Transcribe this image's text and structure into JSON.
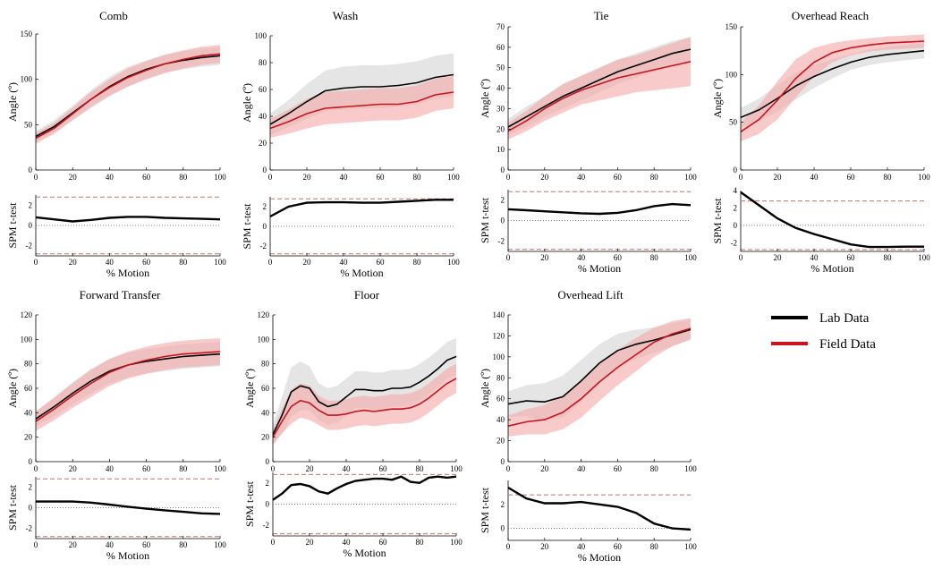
{
  "chart_data": {
    "type": "line",
    "legend": {
      "position": "right",
      "entries": [
        {
          "name": "Lab Data",
          "color": "#000000"
        },
        {
          "name": "Field Data",
          "color": "#c8141e"
        }
      ]
    },
    "colors": {
      "lab": "#000000",
      "field": "#c8141e",
      "lab_band": "#dcdcdc",
      "field_band": "#f3a7a7",
      "threshold": "#c07070"
    },
    "panels": [
      {
        "title": "Comb",
        "x": [
          0,
          10,
          20,
          30,
          40,
          50,
          60,
          70,
          80,
          90,
          100
        ],
        "xlim": [
          0,
          100
        ],
        "xticks": [
          0,
          20,
          40,
          60,
          80,
          100
        ],
        "ylabel": "Angle (º)",
        "ylim": [
          0,
          150
        ],
        "yticks": [
          0,
          50,
          100,
          150
        ],
        "series": [
          {
            "name": "Lab Data",
            "values": [
              37,
              48,
              63,
              78,
              92,
              103,
              111,
              117,
              121,
              124,
              126
            ],
            "sd": [
              6,
              7,
              8,
              10,
              11,
              11,
              10,
              10,
              10,
              10,
              10
            ]
          },
          {
            "name": "Field Data",
            "values": [
              35,
              46,
              62,
              78,
              91,
              102,
              110,
              117,
              122,
              126,
              128
            ],
            "sd": [
              6,
              6,
              7,
              8,
              9,
              10,
              10,
              10,
              10,
              10,
              10
            ]
          }
        ],
        "spm": {
          "ylabel": "SPM t-test",
          "xlabel": "% Motion",
          "ylim": [
            -3,
            3
          ],
          "yticks": [
            -2,
            0,
            2
          ],
          "threshold": 2.8,
          "t": [
            0.8,
            0.6,
            0.4,
            0.55,
            0.75,
            0.85,
            0.85,
            0.75,
            0.7,
            0.65,
            0.6
          ]
        }
      },
      {
        "title": "Wash",
        "x": [
          0,
          10,
          20,
          30,
          40,
          50,
          60,
          70,
          80,
          90,
          100
        ],
        "xlim": [
          0,
          100
        ],
        "xticks": [
          0,
          20,
          40,
          60,
          80,
          100
        ],
        "ylabel": "Angle (º)",
        "ylim": [
          0,
          100
        ],
        "yticks": [
          0,
          20,
          40,
          60,
          80,
          100
        ],
        "series": [
          {
            "name": "Lab Data",
            "values": [
              34,
              42,
              51,
              59,
              61,
              62,
              62,
              63,
              65,
              69,
              71
            ],
            "sd": [
              8,
              10,
              13,
              15,
              16,
              16,
              16,
              16,
              16,
              16,
              16
            ]
          },
          {
            "name": "Field Data",
            "values": [
              31,
              36,
              42,
              46,
              47,
              48,
              49,
              49,
              51,
              56,
              58
            ],
            "sd": [
              7,
              9,
              11,
              12,
              12,
              12,
              12,
              12,
              12,
              12,
              12
            ]
          }
        ],
        "spm": {
          "ylabel": "SPM t-test",
          "xlabel": "% Motion",
          "ylim": [
            -3,
            3
          ],
          "yticks": [
            -2,
            0,
            2
          ],
          "threshold": 2.8,
          "t": [
            1.0,
            2.0,
            2.4,
            2.45,
            2.45,
            2.4,
            2.4,
            2.5,
            2.6,
            2.7,
            2.7
          ]
        }
      },
      {
        "title": "Tie",
        "x": [
          0,
          10,
          20,
          30,
          40,
          50,
          60,
          70,
          80,
          90,
          100
        ],
        "xlim": [
          0,
          100
        ],
        "xticks": [
          0,
          20,
          40,
          60,
          80,
          100
        ],
        "ylabel": "Angle (º)",
        "ylim": [
          0,
          70
        ],
        "yticks": [
          0,
          10,
          20,
          30,
          40,
          50,
          60,
          70
        ],
        "series": [
          {
            "name": "Lab Data",
            "values": [
              21,
              26,
              31,
              36,
              40,
              44,
              48,
              51,
              54,
              57,
              59
            ],
            "sd": [
              4,
              5,
              5,
              6,
              6,
              6,
              6,
              6,
              6,
              6,
              6
            ]
          },
          {
            "name": "Field Data",
            "values": [
              19,
              24,
              30,
              35,
              39,
              42,
              45,
              47,
              49,
              51,
              53
            ],
            "sd": [
              4,
              5,
              6,
              7,
              7,
              8,
              9,
              9,
              10,
              11,
              12
            ]
          }
        ],
        "spm": {
          "ylabel": "SPM t-test",
          "xlabel": "% Motion",
          "ylim": [
            -3,
            3
          ],
          "yticks": [
            -2,
            0,
            2
          ],
          "threshold": 2.8,
          "t": [
            1.1,
            1.0,
            0.9,
            0.8,
            0.7,
            0.65,
            0.75,
            1.0,
            1.4,
            1.6,
            1.5
          ]
        }
      },
      {
        "title": "Overhead Reach",
        "x": [
          0,
          10,
          20,
          30,
          40,
          50,
          60,
          70,
          80,
          90,
          100
        ],
        "xlim": [
          0,
          100
        ],
        "xticks": [
          0,
          20,
          40,
          60,
          80,
          100
        ],
        "ylabel": "Angle (º)",
        "ylim": [
          0,
          150
        ],
        "yticks": [
          0,
          50,
          100,
          150
        ],
        "series": [
          {
            "name": "Lab Data",
            "values": [
              55,
              63,
              75,
              88,
              98,
              106,
              113,
              118,
              121,
              123,
              125
            ],
            "sd": [
              10,
              12,
              14,
              14,
              12,
              10,
              8,
              8,
              8,
              8,
              8
            ]
          },
          {
            "name": "Field Data",
            "values": [
              40,
              53,
              73,
              96,
              113,
              123,
              128,
              131,
              133,
              134,
              135
            ],
            "sd": [
              10,
              15,
              20,
              20,
              15,
              10,
              8,
              7,
              7,
              7,
              7
            ]
          }
        ],
        "spm": {
          "ylabel": "SPM t-test",
          "xlabel": "% Motion",
          "ylim": [
            -3,
            4
          ],
          "yticks": [
            -2,
            0,
            2,
            4
          ],
          "threshold": 2.8,
          "t": [
            3.8,
            2.3,
            0.8,
            -0.3,
            -1.0,
            -1.6,
            -2.2,
            -2.5,
            -2.5,
            -2.45,
            -2.45
          ]
        }
      },
      {
        "title": "Forward Transfer",
        "x": [
          0,
          10,
          20,
          30,
          40,
          50,
          60,
          70,
          80,
          90,
          100
        ],
        "xlim": [
          0,
          100
        ],
        "xticks": [
          0,
          20,
          40,
          60,
          80,
          100
        ],
        "ylabel": "Angle (º)",
        "ylim": [
          0,
          120
        ],
        "yticks": [
          0,
          20,
          40,
          60,
          80,
          100,
          120
        ],
        "series": [
          {
            "name": "Lab Data",
            "values": [
              35,
              45,
              56,
              66,
              74,
              79,
              82,
              84,
              86,
              87,
              88
            ],
            "sd": [
              6,
              8,
              9,
              10,
              10,
              10,
              10,
              10,
              10,
              10,
              10
            ]
          },
          {
            "name": "Field Data",
            "values": [
              33,
              43,
              54,
              64,
              73,
              79,
              83,
              86,
              88,
              89,
              90
            ],
            "sd": [
              8,
              9,
              10,
              11,
              11,
              11,
              11,
              11,
              11,
              11,
              11
            ]
          }
        ],
        "spm": {
          "ylabel": "SPM t-test",
          "xlabel": "% Motion",
          "ylim": [
            -3,
            3
          ],
          "yticks": [
            -2,
            0,
            2
          ],
          "threshold": 2.8,
          "t": [
            0.6,
            0.6,
            0.6,
            0.5,
            0.3,
            0.1,
            -0.1,
            -0.25,
            -0.4,
            -0.55,
            -0.6
          ]
        }
      },
      {
        "title": "Floor",
        "x": [
          0,
          5,
          10,
          15,
          20,
          25,
          30,
          35,
          40,
          45,
          50,
          55,
          60,
          65,
          70,
          75,
          80,
          85,
          90,
          95,
          100
        ],
        "xlim": [
          0,
          100
        ],
        "xticks": [
          0,
          20,
          40,
          60,
          80,
          100
        ],
        "ylabel": "Angle (º)",
        "ylim": [
          0,
          120
        ],
        "yticks": [
          0,
          20,
          40,
          60,
          80,
          100,
          120
        ],
        "series": [
          {
            "name": "Lab Data",
            "values": [
              22,
              38,
              57,
              62,
              60,
              49,
              45,
              47,
              53,
              59,
              59,
              58,
              58,
              60,
              60,
              61,
              65,
              70,
              76,
              83,
              86
            ],
            "sd": [
              8,
              15,
              20,
              20,
              18,
              15,
              15,
              15,
              15,
              15,
              15,
              15,
              15,
              15,
              15,
              15,
              15,
              15,
              15,
              15,
              15
            ]
          },
          {
            "name": "Field Data",
            "values": [
              20,
              33,
              45,
              50,
              48,
              42,
              38,
              38,
              39,
              41,
              42,
              41,
              42,
              43,
              43,
              44,
              47,
              52,
              58,
              64,
              68
            ],
            "sd": [
              6,
              10,
              14,
              14,
              14,
              12,
              12,
              12,
              12,
              12,
              12,
              12,
              12,
              12,
              12,
              12,
              12,
              12,
              12,
              12,
              12
            ]
          }
        ],
        "spm": {
          "ylabel": "SPM t-test",
          "xlabel": "% Motion",
          "ylim": [
            -3,
            3
          ],
          "yticks": [
            -2,
            0,
            2
          ],
          "threshold": 2.8,
          "t": [
            0.4,
            1.0,
            1.8,
            1.9,
            1.7,
            1.2,
            1.0,
            1.5,
            1.9,
            2.2,
            2.3,
            2.4,
            2.4,
            2.3,
            2.6,
            2.1,
            2.0,
            2.5,
            2.6,
            2.5,
            2.6
          ]
        }
      },
      {
        "title": "Overhead Lift",
        "x": [
          0,
          10,
          20,
          30,
          40,
          50,
          60,
          70,
          80,
          90,
          100
        ],
        "xlim": [
          0,
          100
        ],
        "xticks": [
          0,
          20,
          40,
          60,
          80,
          100
        ],
        "ylabel": "Angle (º)",
        "ylim": [
          0,
          140
        ],
        "yticks": [
          0,
          20,
          40,
          60,
          80,
          100,
          120,
          140
        ],
        "series": [
          {
            "name": "Lab Data",
            "values": [
              55,
              58,
              57,
              62,
              77,
              94,
              106,
              112,
              116,
              121,
              126
            ],
            "sd": [
              12,
              15,
              18,
              20,
              20,
              18,
              16,
              14,
              12,
              11,
              10
            ]
          },
          {
            "name": "Field Data",
            "values": [
              34,
              38,
              40,
              47,
              60,
              76,
              90,
              102,
              114,
              122,
              127
            ],
            "sd": [
              10,
              12,
              14,
              16,
              18,
              18,
              17,
              16,
              14,
              12,
              10
            ]
          }
        ],
        "spm": {
          "ylabel": "SPM t-test",
          "xlabel": "% Motion",
          "ylim": [
            -1,
            4
          ],
          "yticks": [
            0,
            2
          ],
          "threshold": 2.8,
          "t": [
            3.4,
            2.5,
            2.1,
            2.1,
            2.2,
            2.0,
            1.8,
            1.3,
            0.4,
            0.0,
            -0.1
          ]
        }
      }
    ]
  }
}
